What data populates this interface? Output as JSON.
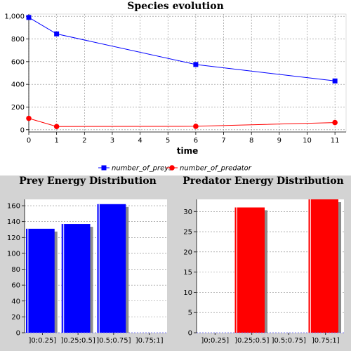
{
  "chart_data": [
    {
      "type": "line",
      "title": "Species evolution",
      "xlabel": "time",
      "ylabel": "",
      "x": [
        0,
        1,
        6,
        11
      ],
      "xlim": [
        0,
        11.4
      ],
      "ylim": [
        -20,
        1020
      ],
      "xticks": [
        0,
        1,
        2,
        3,
        4,
        5,
        6,
        7,
        8,
        9,
        10,
        11
      ],
      "yticks": [
        0,
        200,
        400,
        600,
        800,
        1000
      ],
      "ytick_labels": [
        "0",
        "200",
        "400",
        "600",
        "800",
        "1,000"
      ],
      "grid": true,
      "legend": "bottom",
      "series": [
        {
          "name": "number_of_preys",
          "values": [
            990,
            845,
            575,
            430
          ],
          "color": "#0000ff",
          "marker": "square"
        },
        {
          "name": "number_of_predator",
          "values": [
            100,
            28,
            30,
            63
          ],
          "color": "#ff0000",
          "marker": "circle"
        }
      ]
    },
    {
      "type": "bar",
      "title": "Prey Energy Distribution",
      "categories": [
        "]0;0.25]",
        "]0.25;0.5]",
        "]0.5;0.75]",
        "]0.75;1]"
      ],
      "values": [
        131,
        137,
        162,
        0
      ],
      "ylim": [
        0,
        168
      ],
      "yticks": [
        0,
        20,
        40,
        60,
        80,
        100,
        120,
        140,
        160
      ],
      "color": "#0000ff",
      "grid": true
    },
    {
      "type": "bar",
      "title": "Predator Energy Distribution",
      "categories": [
        "]0;0.25]",
        "]0.25;0.5]",
        "]0.5;0.75]",
        "]0.75;1]"
      ],
      "values": [
        0,
        31,
        0,
        33
      ],
      "ylim": [
        0,
        33
      ],
      "yticks": [
        0,
        5,
        10,
        15,
        20,
        25,
        30
      ],
      "color": "#ff0000",
      "grid": true
    }
  ]
}
